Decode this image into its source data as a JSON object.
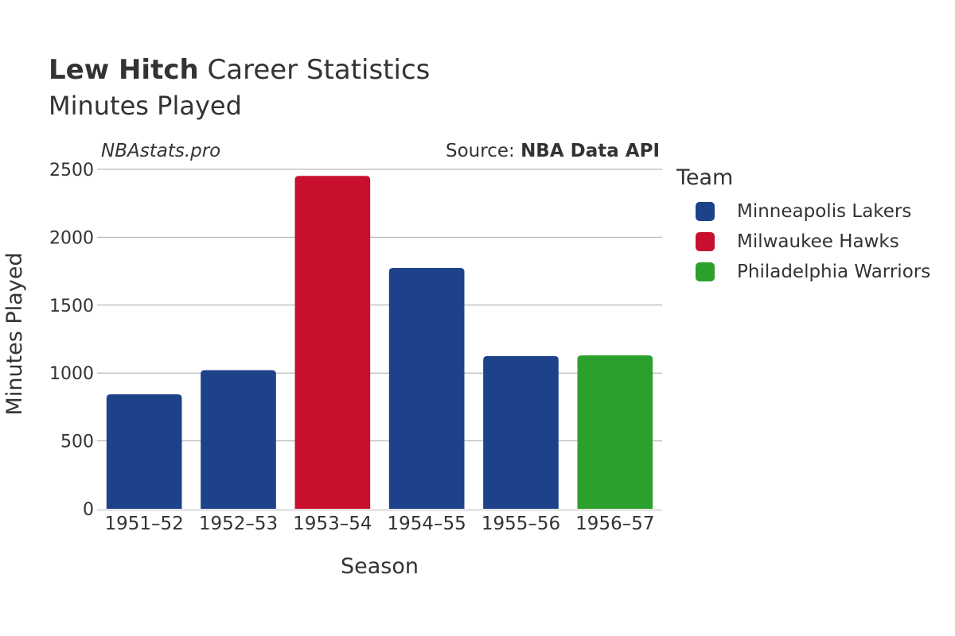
{
  "header": {
    "title_bold": "Lew Hitch",
    "title_rest": " Career Statistics",
    "subtitle": "Minutes Played",
    "watermark": "NBAstats.pro",
    "source_prefix": "Source: ",
    "source_name": "NBA Data API"
  },
  "legend": {
    "title": "Team",
    "items": [
      {
        "label": "Minneapolis Lakers",
        "color": "#1d428a"
      },
      {
        "label": "Milwaukee Hawks",
        "color": "#c8102e"
      },
      {
        "label": "Philadelphia Warriors",
        "color": "#2ca02c"
      }
    ]
  },
  "chart_data": {
    "type": "bar",
    "title": "Lew Hitch Career Statistics",
    "subtitle": "Minutes Played",
    "xlabel": "Season",
    "ylabel": "Minutes Played",
    "ylim": [
      0,
      2500
    ],
    "yticks": [
      0,
      500,
      1000,
      1500,
      2000,
      2500
    ],
    "grid": true,
    "legend_position": "right",
    "categories": [
      "1951–52",
      "1952–53",
      "1953–54",
      "1954–55",
      "1955–56",
      "1956–57"
    ],
    "values": [
      843,
      1021,
      2452,
      1774,
      1125,
      1130
    ],
    "teams": [
      "Minneapolis Lakers",
      "Minneapolis Lakers",
      "Milwaukee Hawks",
      "Minneapolis Lakers",
      "Minneapolis Lakers",
      "Philadelphia Warriors"
    ],
    "colors": [
      "#1d428a",
      "#1d428a",
      "#c8102e",
      "#1d428a",
      "#1d428a",
      "#2ca02c"
    ]
  }
}
